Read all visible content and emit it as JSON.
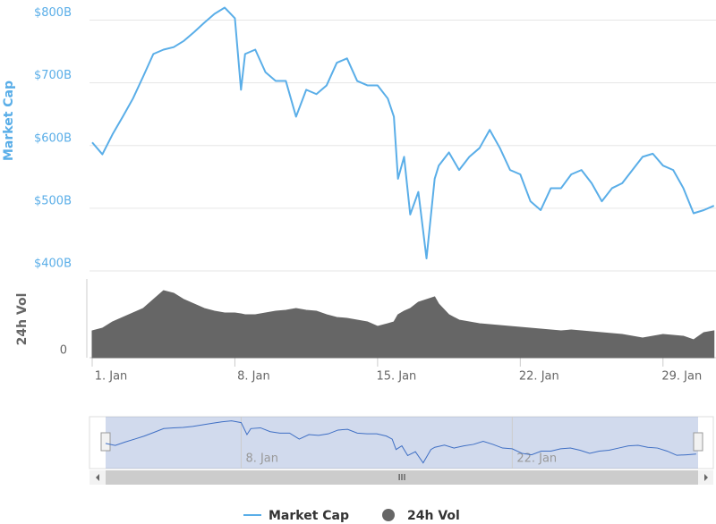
{
  "chart_data": {
    "type": "line",
    "ylabel": "Market Cap",
    "y2label": "24h Vol",
    "x": [
      1,
      1.5,
      2,
      2.5,
      3,
      3.5,
      4,
      4.5,
      5,
      5.5,
      6,
      6.5,
      7,
      7.5,
      8,
      8.3,
      8.5,
      9,
      9.5,
      10,
      10.5,
      11,
      11.5,
      12,
      12.5,
      13,
      13.5,
      14,
      14.5,
      15,
      15.5,
      15.8,
      16,
      16.3,
      16.6,
      17,
      17.4,
      17.8,
      18,
      18.5,
      19,
      19.5,
      20,
      20.5,
      21,
      21.5,
      22,
      22.5,
      23,
      23.5,
      24,
      24.5,
      25,
      25.5,
      26,
      26.5,
      27,
      27.5,
      28,
      28.5,
      29,
      29.5,
      30,
      30.5,
      31,
      31.5
    ],
    "xlim": [
      1,
      31.6
    ],
    "xticks": [
      {
        "value": 1,
        "label": "1. Jan"
      },
      {
        "value": 8,
        "label": "8. Jan"
      },
      {
        "value": 15,
        "label": "15. Jan"
      },
      {
        "value": 22,
        "label": "22. Jan"
      },
      {
        "value": 29,
        "label": "29. Jan"
      }
    ],
    "ylim": [
      400,
      825
    ],
    "yticks": [
      {
        "value": 400,
        "label": "$400B"
      },
      {
        "value": 500,
        "label": "$500B"
      },
      {
        "value": 600,
        "label": "$600B"
      },
      {
        "value": 700,
        "label": "$700B"
      },
      {
        "value": 800,
        "label": "$800B"
      }
    ],
    "y2lim": [
      0,
      90
    ],
    "y2ticks": [
      0
    ],
    "grid": true,
    "legend": "bottom",
    "series": [
      {
        "name": "Market Cap",
        "color": "#5aaee8",
        "values": [
          605,
          586,
          618,
          646,
          675,
          710,
          746,
          753,
          757,
          767,
          781,
          796,
          810,
          820,
          803,
          689,
          746,
          753,
          717,
          703,
          703,
          646,
          689,
          682,
          696,
          732,
          739,
          703,
          696,
          696,
          675,
          646,
          547,
          582,
          490,
          526,
          420,
          547,
          568,
          589,
          561,
          582,
          596,
          625,
          596,
          561,
          554,
          511,
          497,
          532,
          532,
          554,
          561,
          540,
          511,
          532,
          540,
          561,
          582,
          587,
          568,
          561,
          532,
          492,
          497,
          504
        ]
      },
      {
        "name": "24h Vol",
        "color": "#666666",
        "axis": "y2",
        "values": [
          30,
          33,
          40,
          45,
          50,
          55,
          65,
          75,
          72,
          65,
          60,
          55,
          52,
          50,
          50,
          49,
          48,
          48,
          50,
          52,
          53,
          55,
          53,
          52,
          48,
          45,
          44,
          42,
          40,
          35,
          38,
          40,
          48,
          52,
          55,
          62,
          65,
          68,
          60,
          48,
          42,
          40,
          38,
          37,
          36,
          35,
          34,
          33,
          32,
          31,
          30,
          31,
          30,
          29,
          28,
          27,
          26,
          24,
          22,
          24,
          26,
          25,
          24,
          20,
          28,
          30
        ]
      }
    ]
  }
}
